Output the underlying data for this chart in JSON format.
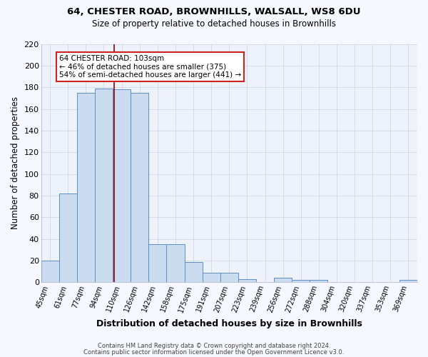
{
  "title1": "64, CHESTER ROAD, BROWNHILLS, WALSALL, WS8 6DU",
  "title2": "Size of property relative to detached houses in Brownhills",
  "xlabel": "Distribution of detached houses by size in Brownhills",
  "ylabel": "Number of detached properties",
  "categories": [
    "45sqm",
    "61sqm",
    "77sqm",
    "94sqm",
    "110sqm",
    "126sqm",
    "142sqm",
    "158sqm",
    "175sqm",
    "191sqm",
    "207sqm",
    "223sqm",
    "239sqm",
    "256sqm",
    "272sqm",
    "288sqm",
    "304sqm",
    "320sqm",
    "337sqm",
    "353sqm",
    "369sqm"
  ],
  "values": [
    20,
    82,
    175,
    179,
    178,
    175,
    35,
    35,
    19,
    9,
    9,
    3,
    0,
    4,
    2,
    2,
    0,
    0,
    0,
    0,
    2
  ],
  "bar_color": "#ccdcf0",
  "bar_edge_color": "#5b8ec9",
  "highlight_line_color": "#990000",
  "annotation_title": "64 CHESTER ROAD: 103sqm",
  "annotation_line1": "← 46% of detached houses are smaller (375)",
  "annotation_line2": "54% of semi-detached houses are larger (441) →",
  "annotation_box_facecolor": "#ffffff",
  "annotation_box_edgecolor": "#cc2222",
  "ylim": [
    0,
    220
  ],
  "yticks": [
    0,
    20,
    40,
    60,
    80,
    100,
    120,
    140,
    160,
    180,
    200,
    220
  ],
  "footnote1": "Contains HM Land Registry data © Crown copyright and database right 2024.",
  "footnote2": "Contains public sector information licensed under the Open Government Licence v3.0.",
  "fig_bg_color": "#f5f8ff",
  "ax_bg_color": "#eef2fb",
  "grid_color": "#c8d0e0"
}
